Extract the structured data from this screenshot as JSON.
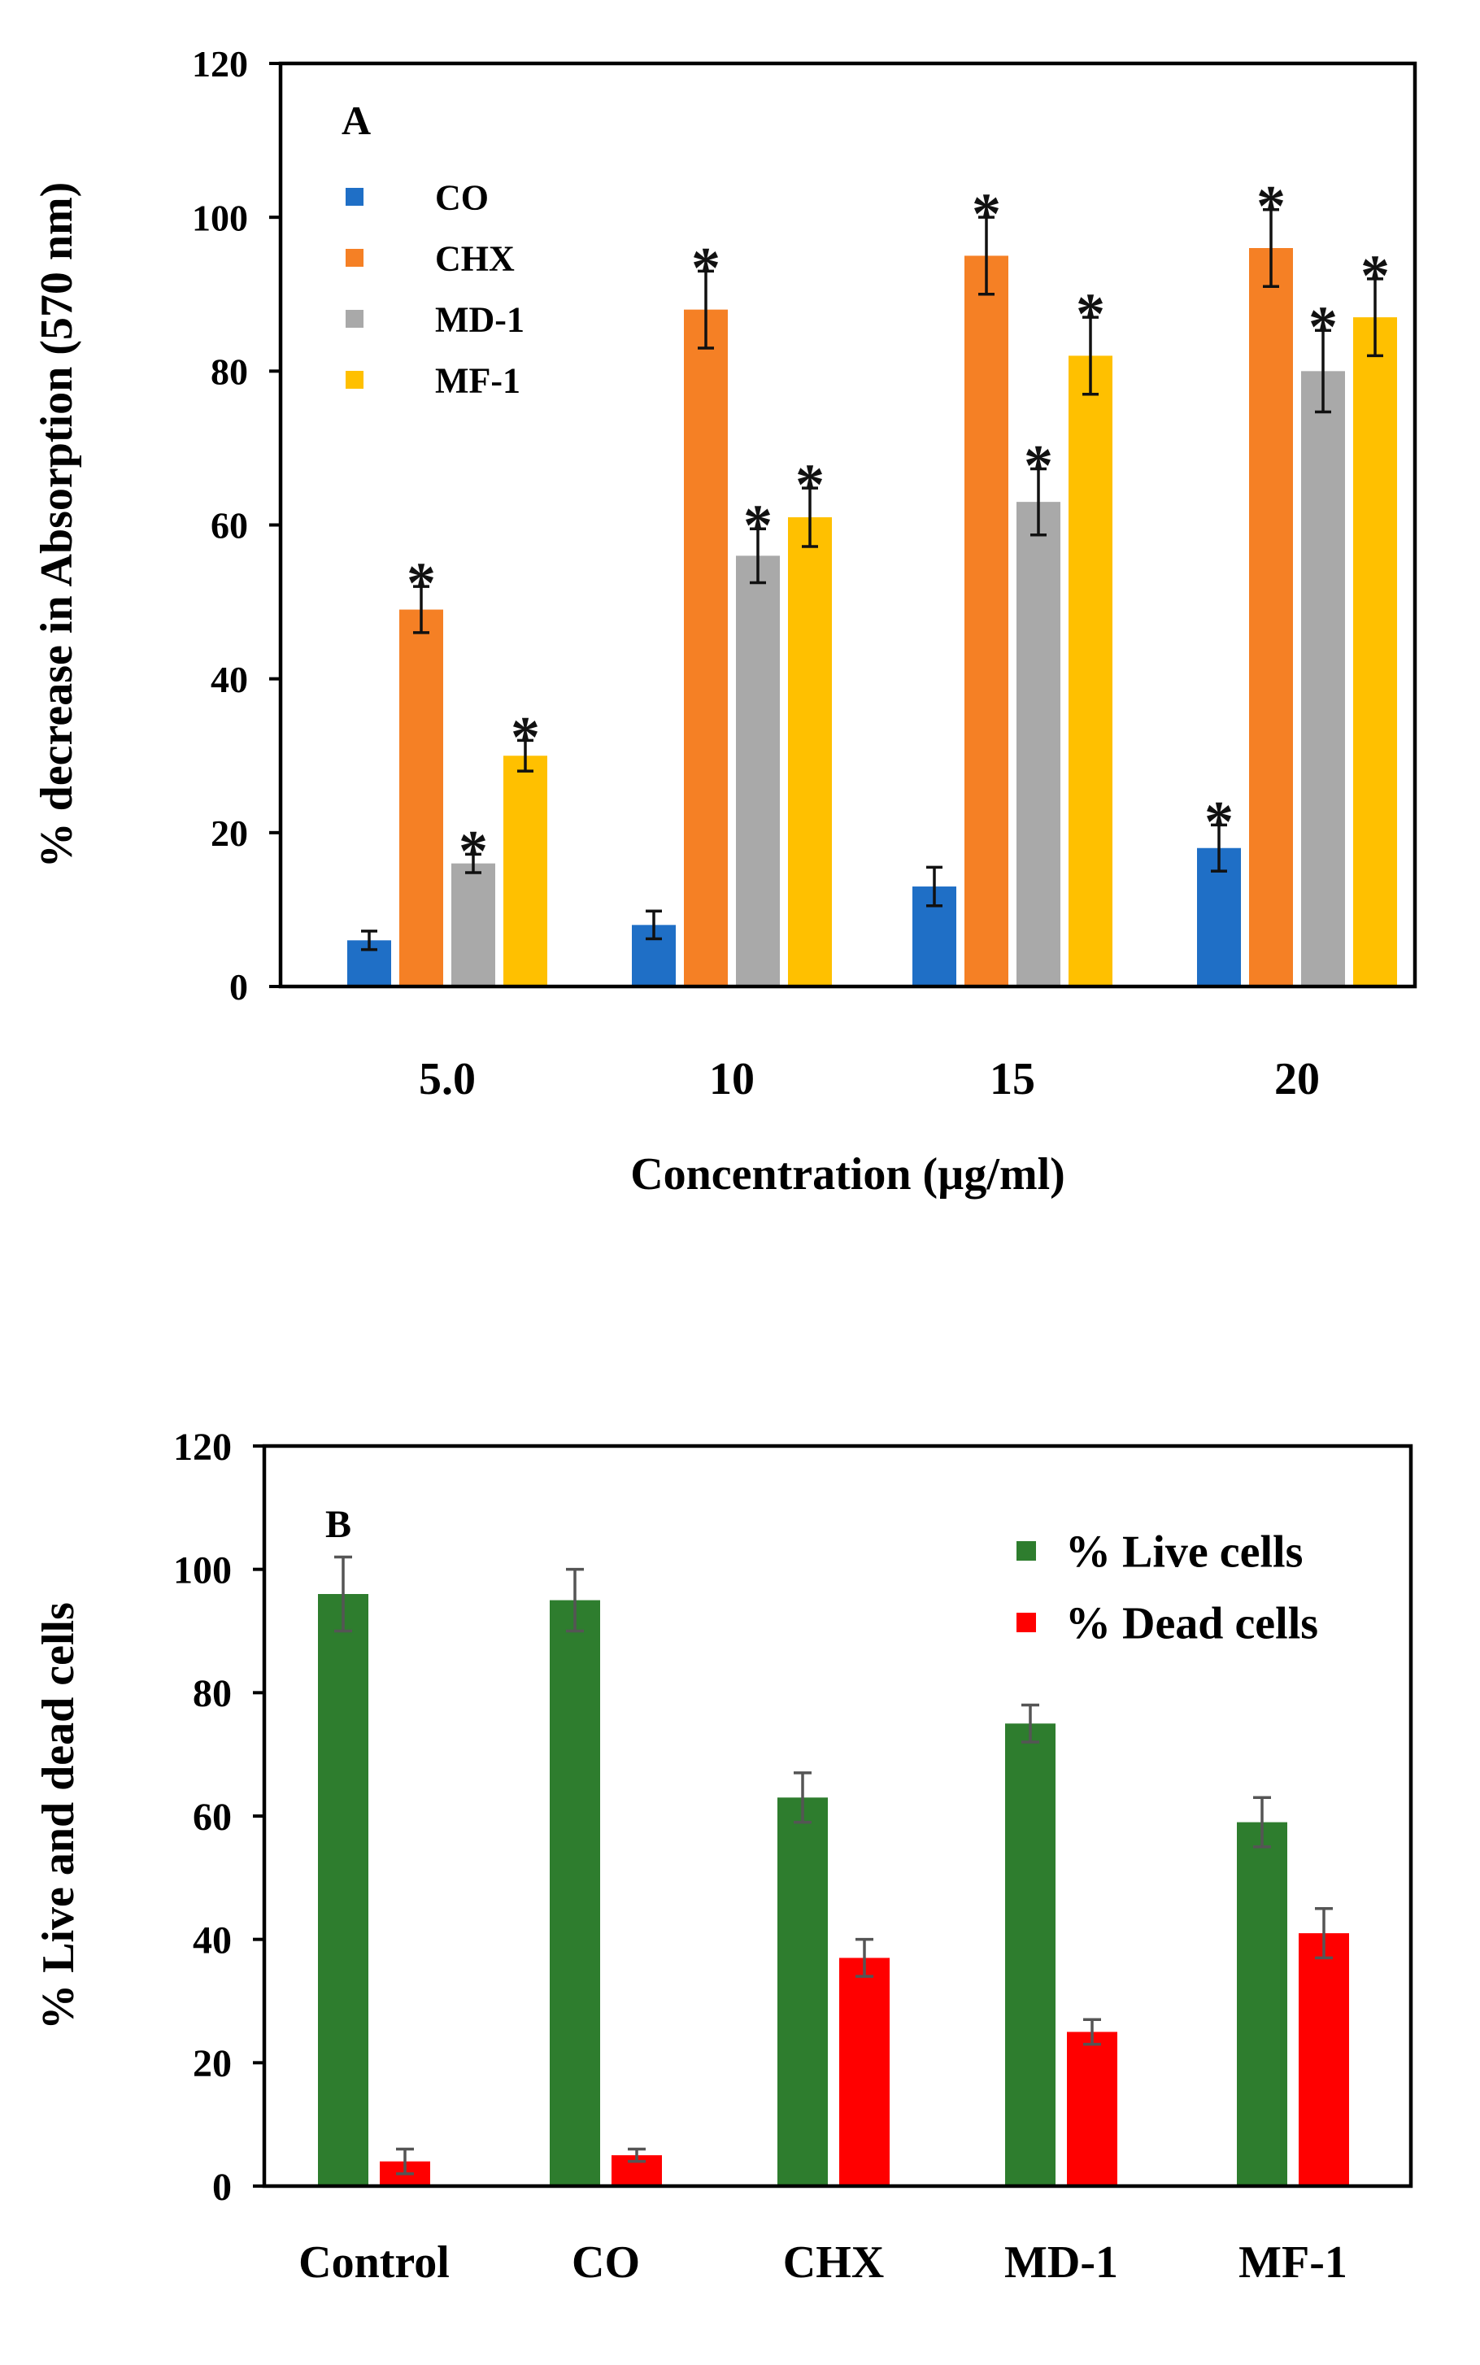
{
  "chart_data": [
    {
      "type": "bar",
      "panel_label": "A",
      "title": "",
      "xlabel": "Concentration (µg/ml)",
      "ylabel": "% decrease in Absorption (570 nm)",
      "categories": [
        "5.0",
        "10",
        "15",
        "20"
      ],
      "ylim": [
        0,
        120
      ],
      "yticks": [
        "0",
        "20",
        "40",
        "60",
        "80",
        "100",
        "120"
      ],
      "grid": false,
      "legend_position": "top-left",
      "significance_marker": "*",
      "series": [
        {
          "name": "CO",
          "color": "#1f6fc6",
          "values": [
            6,
            8,
            13,
            18
          ],
          "errors": [
            1.2,
            1.8,
            2.5,
            3.0
          ],
          "significant": [
            false,
            false,
            false,
            true
          ]
        },
        {
          "name": "CHX",
          "color": "#f58025",
          "values": [
            49,
            88,
            95,
            96
          ],
          "errors": [
            3,
            5,
            5,
            5
          ],
          "significant": [
            true,
            true,
            true,
            true
          ]
        },
        {
          "name": "MD-1",
          "color": "#a9a9a9",
          "values": [
            16,
            56,
            63,
            80
          ],
          "errors": [
            1.2,
            3.5,
            4.3,
            5.3
          ],
          "significant": [
            true,
            true,
            true,
            true
          ]
        },
        {
          "name": "MF-1",
          "color": "#ffc000",
          "values": [
            30,
            61,
            82,
            87
          ],
          "errors": [
            2,
            3.8,
            5,
            5
          ],
          "significant": [
            true,
            true,
            true,
            true
          ]
        }
      ]
    },
    {
      "type": "bar",
      "panel_label": "B",
      "title": "",
      "xlabel": "",
      "ylabel": "% Live and dead cells",
      "categories": [
        "Control",
        "CO",
        "CHX",
        "MD-1",
        "MF-1"
      ],
      "ylim": [
        0,
        120
      ],
      "yticks": [
        "0",
        "20",
        "40",
        "60",
        "80",
        "100",
        "120"
      ],
      "grid": false,
      "legend_position": "top-right",
      "series": [
        {
          "name": "% Live cells",
          "color": "#2e7d2e",
          "values": [
            96,
            95,
            63,
            75,
            59
          ],
          "errors": [
            6,
            5,
            4,
            3,
            4
          ]
        },
        {
          "name": "% Dead cells",
          "color": "#ff0000",
          "values": [
            4,
            5,
            37,
            25,
            41
          ],
          "errors": [
            2,
            1,
            3,
            2,
            4
          ]
        }
      ]
    }
  ]
}
